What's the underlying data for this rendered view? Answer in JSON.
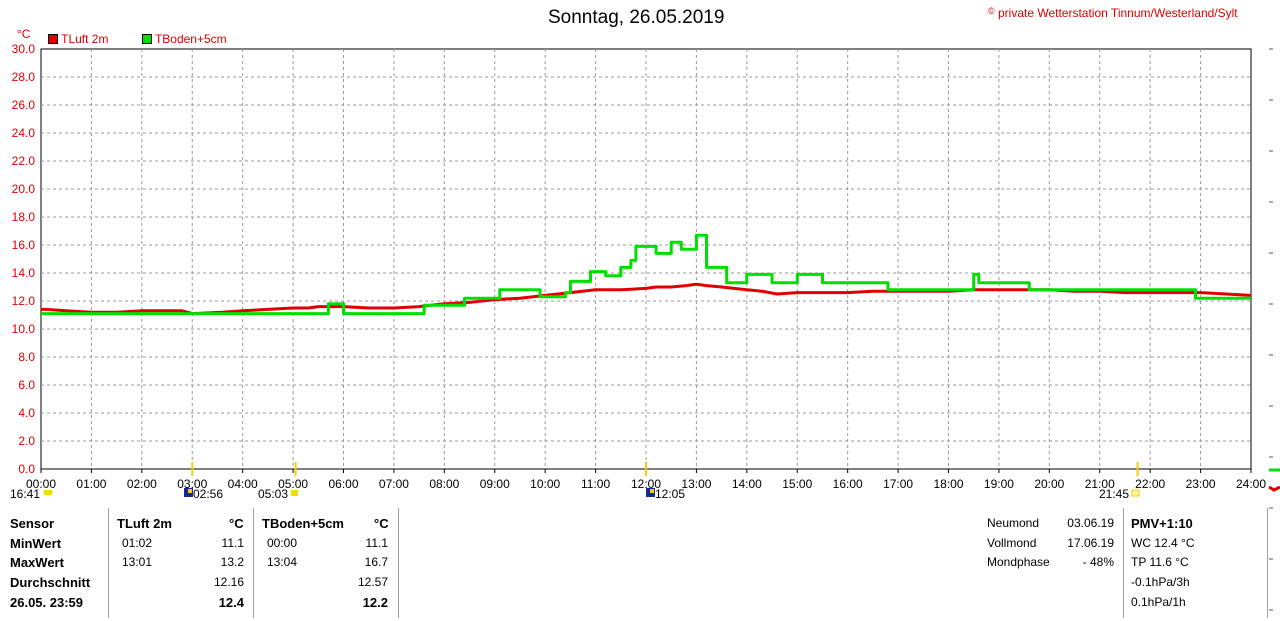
{
  "header": {
    "title": "Sonntag, 26.05.2019",
    "copyright_symbol": "©",
    "copyright": "private Wetterstation Tinnum/Westerland/Sylt"
  },
  "legend": [
    {
      "name": "TLuft 2m",
      "color": "#e00000"
    },
    {
      "name": "TBoden+5cm",
      "color": "#00e000"
    }
  ],
  "chart_data": {
    "type": "line",
    "ylabel": "°C",
    "ylim": [
      0,
      30
    ],
    "yticks": [
      "0.0",
      "2.0",
      "4.0",
      "6.0",
      "8.0",
      "10.0",
      "12.0",
      "14.0",
      "16.0",
      "18.0",
      "20.0",
      "22.0",
      "24.0",
      "26.0",
      "28.0",
      "30.0"
    ],
    "xlim": [
      0,
      24
    ],
    "xticks": [
      "00:00",
      "01:00",
      "02:00",
      "03:00",
      "04:00",
      "05:00",
      "06:00",
      "07:00",
      "08:00",
      "09:00",
      "10:00",
      "11:00",
      "12:00",
      "13:00",
      "14:00",
      "15:00",
      "16:00",
      "17:00",
      "18:00",
      "19:00",
      "20:00",
      "21:00",
      "22:00",
      "23:00",
      "24:00"
    ],
    "grid": true,
    "legend_position": "top-left",
    "series": [
      {
        "name": "TLuft 2m",
        "color": "#e00000",
        "x": [
          0,
          0.1,
          0.5,
          1.0,
          1.5,
          2.0,
          2.8,
          3.0,
          3.6,
          4.0,
          4.5,
          5.0,
          5.3,
          5.5,
          6.0,
          6.5,
          7.0,
          7.5,
          8.0,
          8.5,
          9.0,
          9.5,
          10.0,
          10.5,
          11.0,
          11.5,
          12.0,
          12.2,
          12.5,
          12.8,
          13.0,
          13.2,
          13.5,
          14.0,
          14.3,
          14.6,
          15.0,
          15.5,
          16.0,
          16.5,
          17.0,
          17.5,
          18.0,
          18.5,
          19.0,
          19.5,
          20.0,
          20.5,
          21.0,
          21.5,
          22.0,
          22.5,
          23.0,
          23.5,
          24.0
        ],
        "y": [
          11.4,
          11.4,
          11.3,
          11.2,
          11.2,
          11.3,
          11.3,
          11.1,
          11.2,
          11.3,
          11.4,
          11.5,
          11.5,
          11.6,
          11.6,
          11.5,
          11.5,
          11.6,
          11.8,
          11.9,
          12.1,
          12.2,
          12.4,
          12.6,
          12.8,
          12.8,
          12.9,
          13.0,
          13.0,
          13.1,
          13.2,
          13.1,
          13.0,
          12.8,
          12.7,
          12.5,
          12.6,
          12.6,
          12.6,
          12.7,
          12.7,
          12.7,
          12.7,
          12.8,
          12.8,
          12.8,
          12.8,
          12.7,
          12.7,
          12.6,
          12.6,
          12.6,
          12.6,
          12.5,
          12.4
        ]
      },
      {
        "name": "TBoden+5cm",
        "color": "#00e000",
        "x": [
          0,
          2.8,
          2.8,
          5.7,
          5.7,
          6.0,
          6.0,
          7.6,
          7.6,
          8.4,
          8.4,
          9.1,
          9.1,
          9.9,
          9.9,
          10.4,
          10.4,
          10.5,
          10.5,
          10.9,
          10.9,
          11.2,
          11.2,
          11.5,
          11.5,
          11.7,
          11.7,
          11.8,
          11.8,
          12.2,
          12.2,
          12.5,
          12.5,
          12.7,
          12.7,
          13.0,
          13.0,
          13.2,
          13.2,
          13.6,
          13.6,
          14.0,
          14.0,
          14.5,
          14.5,
          15.0,
          15.0,
          15.5,
          15.5,
          16.0,
          16.0,
          16.8,
          16.8,
          17.9,
          17.9,
          18.5,
          18.5,
          18.6,
          18.6,
          19.6,
          19.6,
          20.5,
          20.5,
          22.9,
          22.9,
          24.0
        ],
        "y": [
          11.1,
          11.1,
          11.1,
          11.1,
          11.8,
          11.8,
          11.1,
          11.1,
          11.7,
          11.7,
          12.2,
          12.2,
          12.8,
          12.8,
          12.3,
          12.3,
          12.6,
          12.6,
          13.4,
          13.4,
          14.1,
          14.1,
          13.8,
          13.8,
          14.4,
          14.4,
          14.9,
          14.9,
          15.9,
          15.9,
          15.4,
          15.4,
          16.2,
          16.2,
          15.7,
          15.7,
          16.7,
          16.7,
          14.4,
          14.4,
          13.3,
          13.3,
          13.9,
          13.9,
          13.3,
          13.3,
          13.9,
          13.9,
          13.3,
          13.3,
          13.3,
          13.3,
          12.8,
          12.8,
          12.8,
          12.8,
          13.9,
          13.9,
          13.3,
          13.3,
          12.8,
          12.8,
          12.8,
          12.8,
          12.2,
          12.2
        ]
      }
    ]
  },
  "sun_moon": {
    "moonset": "16:41",
    "sunrise_symbol": "02:56",
    "sunrise": "05:03",
    "moon_symbol": "12:05",
    "sunset": "21:45"
  },
  "table": {
    "headers": {
      "sensor": "Sensor",
      "t1": "TLuft 2m",
      "t1_unit": "°C",
      "t2": "TBoden+5cm",
      "t2_unit": "°C"
    },
    "rows": [
      {
        "label": "MinWert",
        "t1_time": "01:02",
        "t1_val": "11.1",
        "t2_time": "00:00",
        "t2_val": "11.1"
      },
      {
        "label": "MaxWert",
        "t1_time": "13:01",
        "t1_val": "13.2",
        "t2_time": "13:04",
        "t2_val": "16.7"
      },
      {
        "label": "Durchschnitt",
        "t1_time": "",
        "t1_val": "12.16",
        "t2_time": "",
        "t2_val": "12.57"
      },
      {
        "label": "26.05. 23:59",
        "t1_time": "",
        "t1_val": "12.4",
        "t2_time": "",
        "t2_val": "12.2"
      }
    ]
  },
  "moon_info": [
    {
      "label": "Neumond",
      "value": "03.06.19"
    },
    {
      "label": "Vollmond",
      "value": "17.06.19"
    },
    {
      "label": "Mondphase",
      "value": "- 48%"
    }
  ],
  "pmv": {
    "title": "PMV+1:10",
    "lines": [
      "WC 12.4 °C",
      "TP 11.6 °C",
      "-0.1hPa/3h",
      "0.1hPa/1h"
    ]
  }
}
